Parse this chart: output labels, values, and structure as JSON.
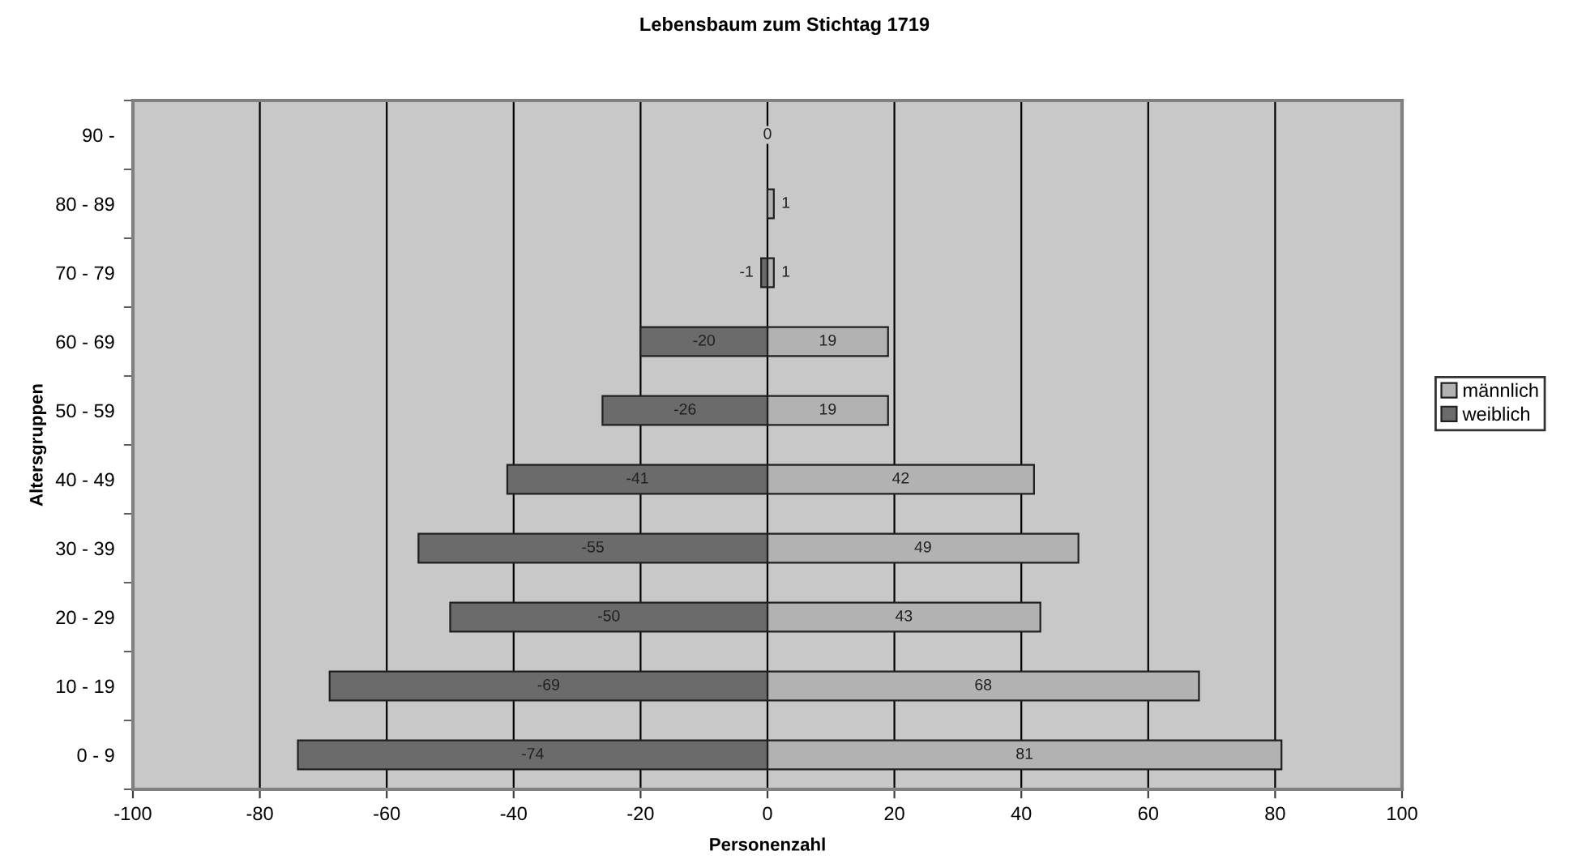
{
  "chart_data": {
    "type": "bar",
    "orientation": "horizontal",
    "stacked": true,
    "title": "Lebensbaum zum Stichtag 1719",
    "xlabel": "Personenzahl",
    "ylabel": "Altersgruppen",
    "categories": [
      "90 -",
      "80 - 89",
      "70 - 79",
      "60 - 69",
      "50 - 59",
      "40 - 49",
      "30 - 39",
      "20 - 29",
      "10 - 19",
      "0 - 9"
    ],
    "series": [
      {
        "name": "männlich",
        "color": "#b2b2b2",
        "values": [
          0,
          1,
          1,
          19,
          19,
          42,
          49,
          43,
          68,
          81
        ],
        "value_labels": [
          "0",
          "1",
          "1",
          "19",
          "19",
          "42",
          "49",
          "43",
          "68",
          "81"
        ]
      },
      {
        "name": "weiblich",
        "color": "#6b6b6b",
        "values": [
          0,
          null,
          -1,
          -20,
          -26,
          -41,
          -55,
          -50,
          -69,
          -74
        ],
        "value_labels": [
          null,
          null,
          "-1",
          "-20",
          "-26",
          "-41",
          "-55",
          "-50",
          "-69",
          "-74"
        ]
      }
    ],
    "xlim": [
      -100,
      100
    ],
    "xticks": [
      -100,
      -80,
      -60,
      -40,
      -20,
      0,
      20,
      40,
      60,
      80,
      100
    ],
    "grid": "x",
    "legend": "right"
  }
}
